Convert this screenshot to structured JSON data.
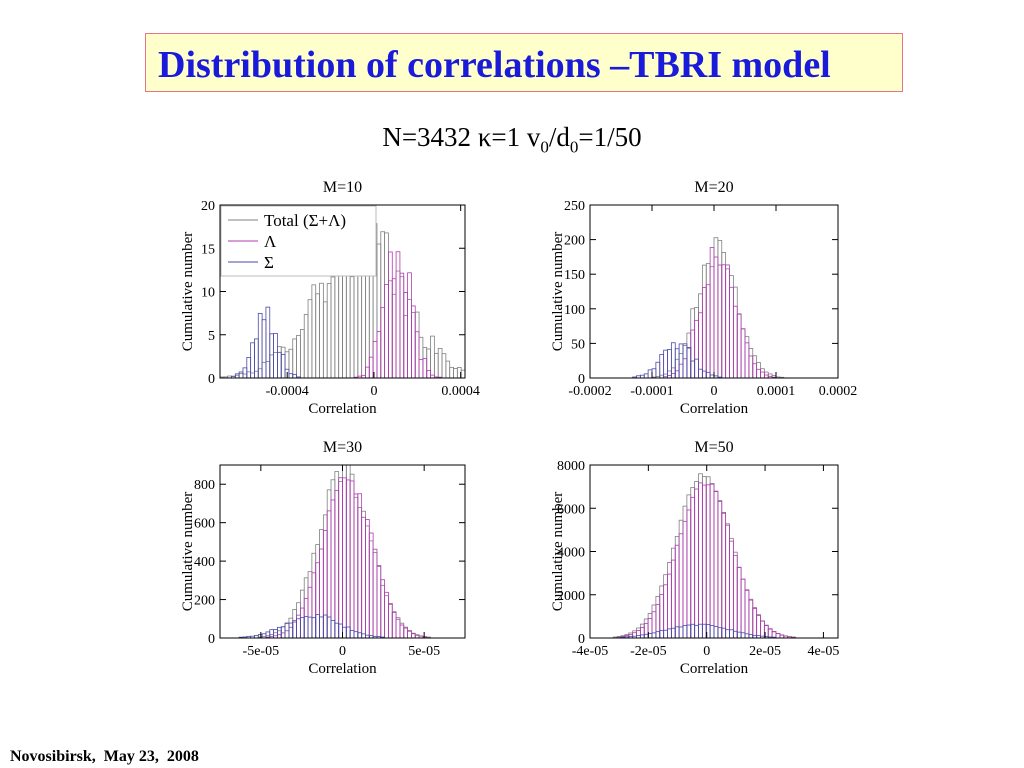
{
  "slide": {
    "title": "Distribution of correlations –TBRI model",
    "subtitle": {
      "n": "N=3432",
      "kappa": "κ=1",
      "v": "v",
      "sub0a": "0",
      "d": "/d",
      "sub0b": "0",
      "ratio": "=1/50"
    },
    "footer": "Novosibirsk,  May 23,  2008"
  },
  "colors": {
    "total": "#808080",
    "lambda": "#b03bb0",
    "sigma": "#4a4aaa",
    "title": "#1a1adb",
    "title_bg": "#ffffcc",
    "title_border": "#e8748a"
  },
  "chart_data": [
    {
      "type": "bar",
      "title": "M=10",
      "xlabel": "Correlation",
      "ylabel": "Cumulative number",
      "xlim": [
        -0.00071,
        0.00042
      ],
      "ylim": [
        0,
        20
      ],
      "xticks": [
        -0.0004,
        0,
        0.0004
      ],
      "xtick_labels": [
        "-0.0004",
        "0",
        "0.0004"
      ],
      "yticks": [
        0,
        5,
        10,
        15,
        20
      ],
      "ytick_labels": [
        "0",
        "5",
        "10",
        "15",
        "20"
      ],
      "legend": {
        "position": "top-left",
        "entries": [
          "Total (Σ+Λ)",
          "Λ",
          "Σ"
        ]
      },
      "series": [
        {
          "name": "Total (Σ+Λ)",
          "center": -7e-05,
          "sigma": 0.0002,
          "peak": 16,
          "noise": 0.3
        },
        {
          "name": "Λ",
          "center": 0.00011,
          "sigma": 6e-05,
          "peak": 15,
          "noise": 0.35
        },
        {
          "name": "Σ",
          "center": -0.0005,
          "sigma": 5.5e-05,
          "peak": 6.5,
          "noise": 0.35
        }
      ]
    },
    {
      "type": "bar",
      "title": "M=20",
      "xlabel": "Correlation",
      "ylabel": "Cumulative number",
      "xlim": [
        -0.0002,
        0.0002
      ],
      "ylim": [
        0,
        250
      ],
      "xticks": [
        -0.0002,
        -0.0001,
        0,
        0.0001,
        0.0002
      ],
      "xtick_labels": [
        "-0.0002",
        "-0.0001",
        "0",
        "0.0001",
        "0.0002"
      ],
      "yticks": [
        0,
        50,
        100,
        150,
        200,
        250
      ],
      "ytick_labels": [
        "0",
        "50",
        "100",
        "150",
        "200",
        "250"
      ],
      "series": [
        {
          "name": "Total (Σ+Λ)",
          "center": 5e-06,
          "sigma": 3.2e-05,
          "peak": 195,
          "noise": 0.15
        },
        {
          "name": "Λ",
          "center": 8e-06,
          "sigma": 2.8e-05,
          "peak": 190,
          "noise": 0.15
        },
        {
          "name": "Σ",
          "center": -6e-05,
          "sigma": 2.6e-05,
          "peak": 48,
          "noise": 0.25
        }
      ]
    },
    {
      "type": "bar",
      "title": "M=30",
      "xlabel": "Correlation",
      "ylabel": "Cumulative number",
      "xlim": [
        -7.5e-05,
        7.5e-05
      ],
      "ylim": [
        0,
        900
      ],
      "xticks": [
        -5e-05,
        0,
        5e-05
      ],
      "xtick_labels": [
        "-5e-05",
        "0",
        "5e-05"
      ],
      "yticks": [
        0,
        200,
        400,
        600,
        800
      ],
      "ytick_labels": [
        "0",
        "200",
        "400",
        "600",
        "800"
      ],
      "series": [
        {
          "name": "Total (Σ+Λ)",
          "center": 1e-06,
          "sigma": 1.6e-05,
          "peak": 860,
          "noise": 0.06
        },
        {
          "name": "Λ",
          "center": 3e-06,
          "sigma": 1.5e-05,
          "peak": 830,
          "noise": 0.06
        },
        {
          "name": "Σ",
          "center": -1.8e-05,
          "sigma": 1.7e-05,
          "peak": 115,
          "noise": 0.15
        }
      ]
    },
    {
      "type": "bar",
      "title": "M=50",
      "xlabel": "Correlation",
      "ylabel": "Cumulative number",
      "xlim": [
        -4e-05,
        4.5e-05
      ],
      "ylim": [
        0,
        8000
      ],
      "xticks": [
        -4e-05,
        -2e-05,
        0,
        2e-05,
        4e-05
      ],
      "xtick_labels": [
        "-4e-05",
        "-2e-05",
        "0",
        "2e-05",
        "4e-05"
      ],
      "yticks": [
        0,
        2000,
        4000,
        6000,
        8000
      ],
      "ytick_labels": [
        "0",
        "2000",
        "4000",
        "6000",
        "8000"
      ],
      "series": [
        {
          "name": "Total (Σ+Λ)",
          "center": -1e-06,
          "sigma": 9.5e-06,
          "peak": 7550,
          "noise": 0.02
        },
        {
          "name": "Λ",
          "center": -5e-07,
          "sigma": 9.3e-06,
          "peak": 7200,
          "noise": 0.02
        },
        {
          "name": "Σ",
          "center": -3e-06,
          "sigma": 1.1e-05,
          "peak": 620,
          "noise": 0.06
        }
      ]
    }
  ]
}
